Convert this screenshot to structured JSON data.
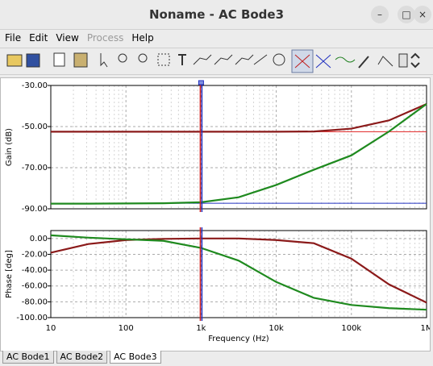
{
  "window": {
    "title": "Noname - AC Bode3"
  },
  "menu": [
    "File",
    "Edit",
    "View",
    "Process",
    "Help"
  ],
  "x": [
    10,
    31.6,
    100,
    316,
    1000,
    3162,
    10000,
    31623,
    100000,
    316228,
    1000000
  ],
  "xlim": [
    10,
    1000000
  ],
  "xscale": "log",
  "xticks": [
    10,
    100,
    {
      "value": 1000,
      "label": "1k"
    },
    {
      "value": 10000,
      "label": "10k"
    },
    {
      "value": 100000,
      "label": "100k"
    },
    {
      "value": 1000000,
      "label": "1M"
    }
  ],
  "x_label": "Frequency (Hz)",
  "cursor_x": 1000,
  "plots": [
    {
      "type": "line",
      "y_label": "Gain (dB)",
      "ylim": [
        -90,
        -30
      ],
      "yticks": [
        {
          "value": -30,
          "label": "-30.00"
        },
        {
          "value": -50,
          "label": "-50.00"
        },
        {
          "value": -70,
          "label": "-70.00"
        },
        {
          "value": -90,
          "label": "-90.00"
        }
      ],
      "reference_lines": [
        {
          "color": "#e02020",
          "value": -52.5
        },
        {
          "color": "#2030c0",
          "value": -87.3
        }
      ],
      "series": [
        {
          "color": "#8b1a1a",
          "values": [
            -52.5,
            -52.5,
            -52.5,
            -52.5,
            -52.5,
            -52.5,
            -52.5,
            -52.4,
            -51,
            -47,
            -39
          ]
        },
        {
          "color": "#1f8a1f",
          "values": [
            -87.5,
            -87.5,
            -87.4,
            -87.3,
            -86.8,
            -84.4,
            -78.4,
            -71,
            -64,
            -52.4,
            -39
          ]
        }
      ]
    },
    {
      "type": "line",
      "y_label": "Phase [deg]",
      "ylim": [
        -100,
        10
      ],
      "yticks": [
        {
          "value": 0,
          "label": "0.00"
        },
        {
          "value": -20,
          "label": "-20.00"
        },
        {
          "value": -40,
          "label": "-40.00"
        },
        {
          "value": -60,
          "label": "-60.00"
        },
        {
          "value": -80,
          "label": "-80.00"
        },
        {
          "value": -100,
          "label": "-100.00"
        }
      ],
      "series": [
        {
          "color": "#8b1a1a",
          "values": [
            -18,
            -7,
            -2,
            -0.5,
            0,
            0,
            -2,
            -6,
            -25.5,
            -58,
            -81
          ]
        },
        {
          "color": "#1f8a1f",
          "values": [
            4,
            1,
            -1,
            -3,
            -12,
            -28,
            -55,
            -75,
            -84,
            -88,
            -90
          ]
        }
      ]
    }
  ],
  "tabs": [
    "AC Bode1",
    "AC Bode2",
    "AC Bode3"
  ],
  "active_tab": 2
}
